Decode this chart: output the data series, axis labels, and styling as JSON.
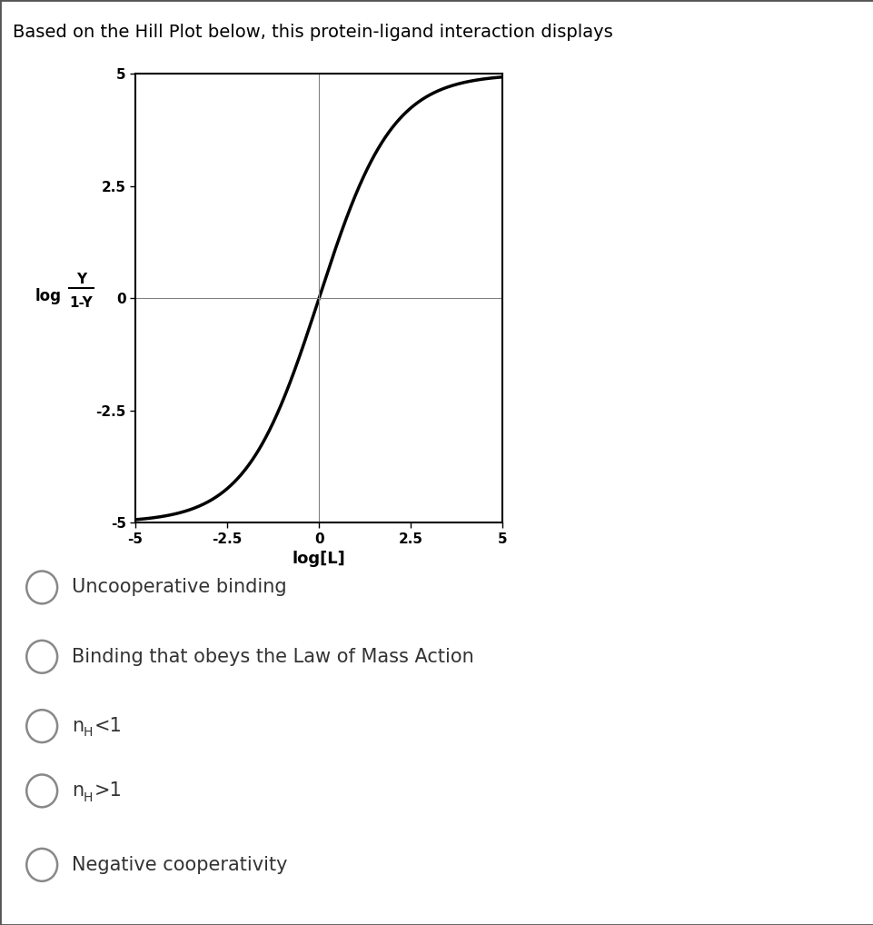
{
  "title": "Based on the Hill Plot below, this protein-ligand interaction displays",
  "title_fontsize": 14,
  "xlabel": "log[L]",
  "xlim": [
    -5,
    5
  ],
  "ylim": [
    -5,
    5
  ],
  "xticks": [
    -5,
    -2.5,
    0,
    2.5,
    5
  ],
  "yticks": [
    -5,
    -2.5,
    0,
    2.5,
    5
  ],
  "curve_color": "#000000",
  "curve_linewidth": 2.5,
  "nH": 2.5,
  "background_color": "#ffffff",
  "options_plain": [
    "Uncooperative binding",
    "Binding that obeys the Law of Mass Action",
    "nH<1",
    "nH>1",
    "Negative cooperativity"
  ],
  "circle_color": "#888888",
  "option_fontsize": 15,
  "text_color": "#333333"
}
